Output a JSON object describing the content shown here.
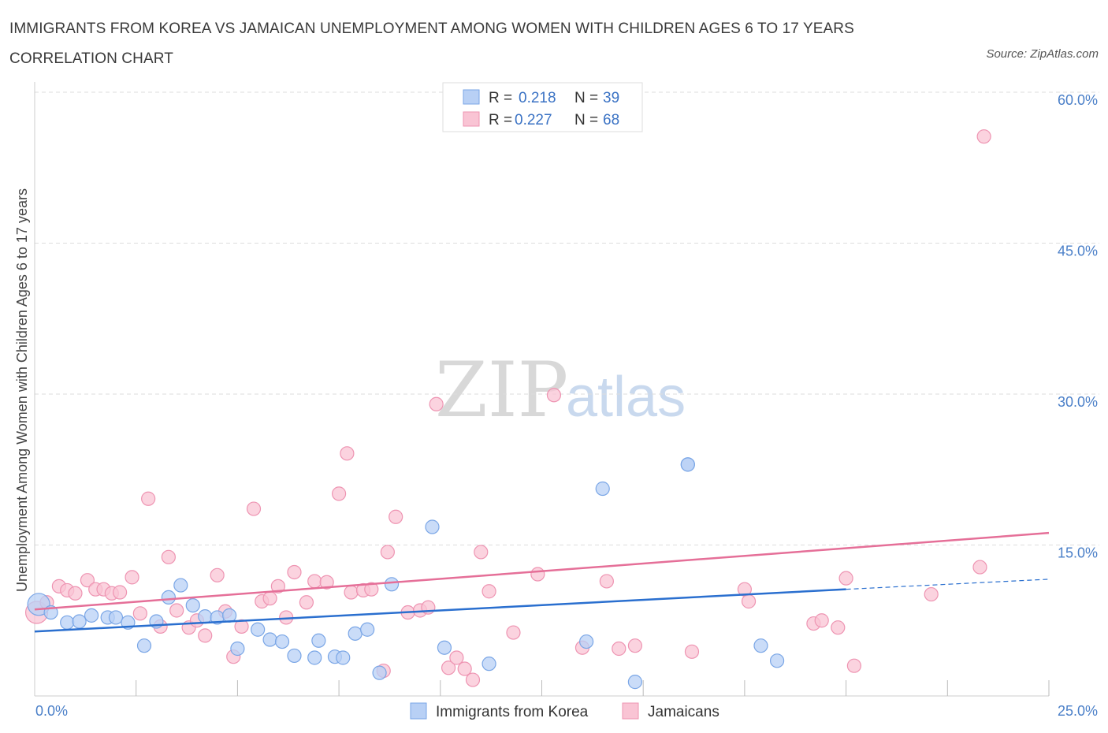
{
  "title": "IMMIGRANTS FROM KOREA VS JAMAICAN UNEMPLOYMENT AMONG WOMEN WITH CHILDREN AGES 6 TO 17 YEARS CORRELATION CHART",
  "source": "Source: ZipAtlas.com",
  "watermark": {
    "zip": "ZIP",
    "atlas": "atlas"
  },
  "colors": {
    "korea_fill": "#b8d0f5",
    "korea_stroke": "#7aa6e6",
    "korea_line": "#2a6fcf",
    "jam_fill": "#f9c4d4",
    "jam_stroke": "#ee94b2",
    "jam_line": "#e56f98",
    "grid": "#dddddd",
    "axis": "#cccccc",
    "tick_text": "#4a7fc8"
  },
  "legend": {
    "r_label": "R = ",
    "n_label": "N = ",
    "korea": {
      "r": "0.218",
      "n": "39"
    },
    "jam": {
      "r": "0.227",
      "n": "68"
    }
  },
  "chart_data": {
    "type": "scatter",
    "title": "IMMIGRANTS FROM KOREA VS JAMAICAN UNEMPLOYMENT AMONG WOMEN WITH CHILDREN AGES 6 TO 17 YEARS CORRELATION CHART",
    "xlabel": "",
    "ylabel": "Unemployment Among Women with Children Ages 6 to 17 years",
    "xlim": [
      0,
      25
    ],
    "ylim": [
      0,
      60
    ],
    "x_tick_labels": [
      "0.0%",
      "25.0%"
    ],
    "y_ticks": [
      15,
      30,
      45,
      60
    ],
    "y_tick_labels": [
      "15.0%",
      "30.0%",
      "45.0%",
      "60.0%"
    ],
    "grid": true,
    "legend_position": "top-center",
    "series": [
      {
        "name": "Immigrants from Korea",
        "r": 0.218,
        "n": 39,
        "trend": {
          "x0": 0,
          "y0": 6.4,
          "x1": 20,
          "y1": 10.6,
          "dash_to_x": 25,
          "dash_y": 11.6
        },
        "points": [
          [
            0.1,
            9.1
          ],
          [
            0.4,
            8.3
          ],
          [
            0.8,
            7.3
          ],
          [
            1.1,
            7.4
          ],
          [
            1.4,
            8.0
          ],
          [
            1.8,
            7.8
          ],
          [
            2.0,
            7.8
          ],
          [
            2.3,
            7.3
          ],
          [
            2.7,
            5.0
          ],
          [
            3.0,
            7.4
          ],
          [
            3.3,
            9.8
          ],
          [
            3.6,
            11.0
          ],
          [
            3.9,
            9.0
          ],
          [
            4.2,
            7.9
          ],
          [
            4.5,
            7.8
          ],
          [
            4.8,
            8.0
          ],
          [
            5.0,
            4.7
          ],
          [
            5.5,
            6.6
          ],
          [
            5.8,
            5.6
          ],
          [
            6.1,
            5.4
          ],
          [
            6.4,
            4.0
          ],
          [
            6.9,
            3.8
          ],
          [
            7.0,
            5.5
          ],
          [
            7.4,
            3.9
          ],
          [
            7.6,
            3.8
          ],
          [
            7.9,
            6.2
          ],
          [
            8.2,
            6.6
          ],
          [
            8.5,
            2.3
          ],
          [
            8.8,
            11.1
          ],
          [
            9.8,
            16.8
          ],
          [
            10.1,
            4.8
          ],
          [
            11.2,
            3.2
          ],
          [
            13.6,
            5.4
          ],
          [
            14.0,
            20.6
          ],
          [
            14.8,
            1.4
          ],
          [
            16.1,
            23.0
          ],
          [
            16.1,
            23.0
          ],
          [
            17.9,
            5.0
          ],
          [
            18.3,
            3.5
          ]
        ]
      },
      {
        "name": "Jamaicans",
        "r": 0.227,
        "n": 68,
        "trend": {
          "x0": 0,
          "y0": 8.6,
          "x1": 25,
          "y1": 16.2
        },
        "points": [
          [
            0.05,
            8.3
          ],
          [
            0.3,
            9.3
          ],
          [
            0.6,
            10.9
          ],
          [
            0.8,
            10.5
          ],
          [
            1.0,
            10.2
          ],
          [
            1.3,
            11.5
          ],
          [
            1.5,
            10.6
          ],
          [
            1.7,
            10.6
          ],
          [
            1.9,
            10.2
          ],
          [
            2.1,
            10.3
          ],
          [
            2.4,
            11.8
          ],
          [
            2.6,
            8.2
          ],
          [
            2.8,
            19.6
          ],
          [
            3.1,
            6.9
          ],
          [
            3.3,
            13.8
          ],
          [
            3.5,
            8.5
          ],
          [
            3.8,
            6.8
          ],
          [
            4.0,
            7.5
          ],
          [
            4.2,
            6.0
          ],
          [
            4.5,
            12.0
          ],
          [
            4.7,
            8.4
          ],
          [
            4.9,
            3.9
          ],
          [
            5.1,
            6.9
          ],
          [
            5.4,
            18.6
          ],
          [
            5.6,
            9.4
          ],
          [
            5.8,
            9.7
          ],
          [
            6.0,
            10.9
          ],
          [
            6.2,
            7.8
          ],
          [
            6.4,
            12.3
          ],
          [
            6.7,
            9.3
          ],
          [
            6.9,
            11.4
          ],
          [
            7.2,
            11.3
          ],
          [
            7.5,
            20.1
          ],
          [
            7.7,
            24.1
          ],
          [
            7.8,
            10.3
          ],
          [
            8.1,
            10.5
          ],
          [
            8.3,
            10.6
          ],
          [
            8.6,
            2.5
          ],
          [
            8.7,
            14.3
          ],
          [
            8.9,
            17.8
          ],
          [
            9.2,
            8.3
          ],
          [
            9.5,
            8.5
          ],
          [
            9.7,
            8.8
          ],
          [
            9.9,
            29.0
          ],
          [
            10.2,
            2.8
          ],
          [
            10.4,
            3.8
          ],
          [
            10.6,
            2.7
          ],
          [
            10.8,
            1.6
          ],
          [
            11.0,
            14.3
          ],
          [
            11.2,
            10.4
          ],
          [
            11.8,
            6.3
          ],
          [
            12.4,
            12.1
          ],
          [
            12.8,
            29.9
          ],
          [
            13.5,
            4.8
          ],
          [
            14.1,
            11.4
          ],
          [
            14.4,
            4.7
          ],
          [
            14.8,
            5.0
          ],
          [
            16.2,
            4.4
          ],
          [
            17.5,
            10.6
          ],
          [
            17.6,
            9.4
          ],
          [
            19.2,
            7.2
          ],
          [
            19.4,
            7.5
          ],
          [
            19.8,
            6.8
          ],
          [
            20.0,
            11.7
          ],
          [
            20.2,
            3.0
          ],
          [
            22.1,
            10.1
          ],
          [
            23.3,
            12.8
          ],
          [
            23.4,
            55.6
          ]
        ]
      }
    ]
  }
}
